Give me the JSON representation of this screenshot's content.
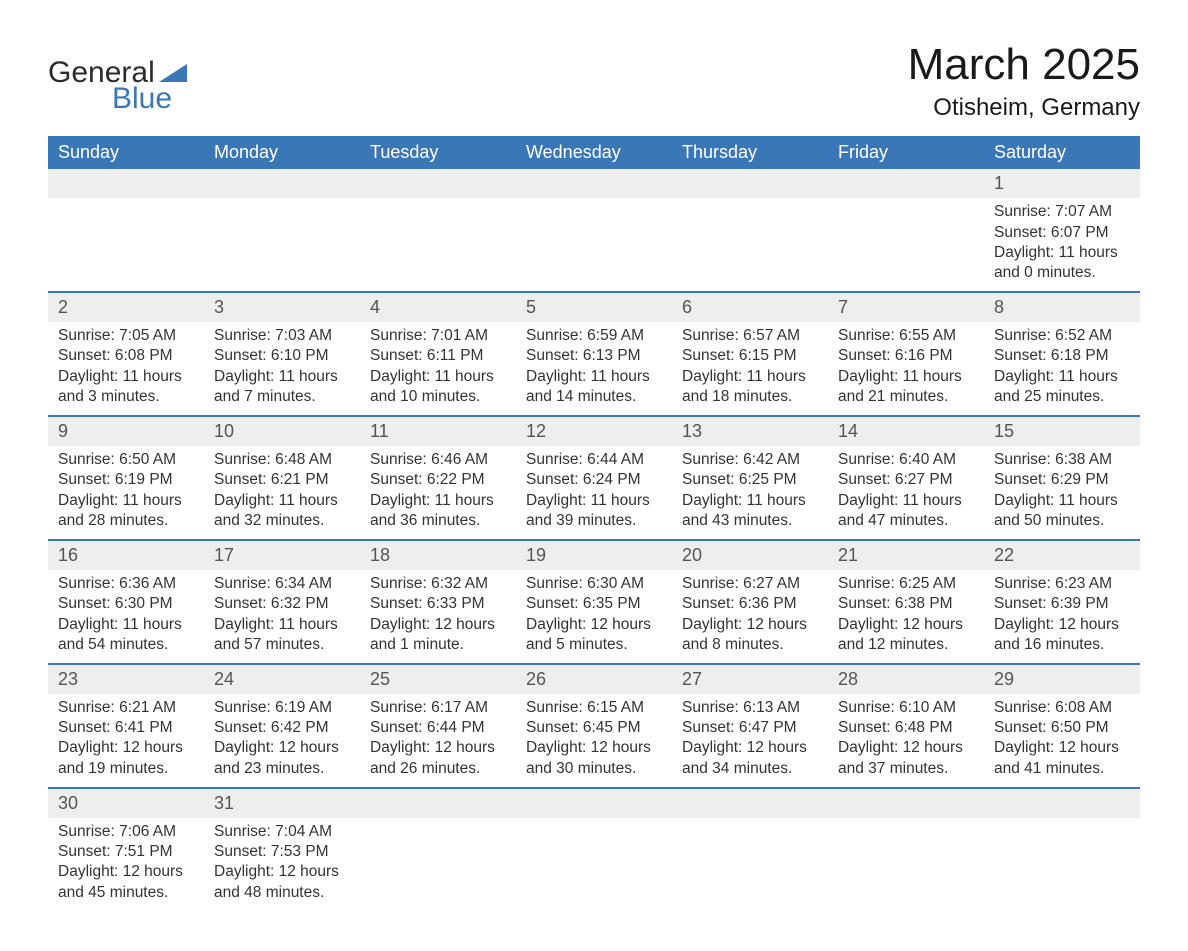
{
  "logo": {
    "word1": "General",
    "word2": "Blue",
    "accent": "#3a77b7",
    "text_color": "#2b2b2b"
  },
  "title": "March 2025",
  "location": "Otisheim, Germany",
  "colors": {
    "header_bg": "#3a77b7",
    "header_text": "#ffffff",
    "daynum_bg": "#eeeeee",
    "daynum_text": "#555555",
    "row_divider": "#3a77b7",
    "body_text": "#333333",
    "background": "#ffffff"
  },
  "typography": {
    "title_fontsize": 44,
    "location_fontsize": 24,
    "header_fontsize": 18,
    "daynum_fontsize": 18,
    "cell_fontsize": 15.5
  },
  "day_headers": [
    "Sunday",
    "Monday",
    "Tuesday",
    "Wednesday",
    "Thursday",
    "Friday",
    "Saturday"
  ],
  "weeks": [
    [
      null,
      null,
      null,
      null,
      null,
      null,
      {
        "n": "1",
        "sunrise": "Sunrise: 7:07 AM",
        "sunset": "Sunset: 6:07 PM",
        "daylight": "Daylight: 11 hours and 0 minutes."
      }
    ],
    [
      {
        "n": "2",
        "sunrise": "Sunrise: 7:05 AM",
        "sunset": "Sunset: 6:08 PM",
        "daylight": "Daylight: 11 hours and 3 minutes."
      },
      {
        "n": "3",
        "sunrise": "Sunrise: 7:03 AM",
        "sunset": "Sunset: 6:10 PM",
        "daylight": "Daylight: 11 hours and 7 minutes."
      },
      {
        "n": "4",
        "sunrise": "Sunrise: 7:01 AM",
        "sunset": "Sunset: 6:11 PM",
        "daylight": "Daylight: 11 hours and 10 minutes."
      },
      {
        "n": "5",
        "sunrise": "Sunrise: 6:59 AM",
        "sunset": "Sunset: 6:13 PM",
        "daylight": "Daylight: 11 hours and 14 minutes."
      },
      {
        "n": "6",
        "sunrise": "Sunrise: 6:57 AM",
        "sunset": "Sunset: 6:15 PM",
        "daylight": "Daylight: 11 hours and 18 minutes."
      },
      {
        "n": "7",
        "sunrise": "Sunrise: 6:55 AM",
        "sunset": "Sunset: 6:16 PM",
        "daylight": "Daylight: 11 hours and 21 minutes."
      },
      {
        "n": "8",
        "sunrise": "Sunrise: 6:52 AM",
        "sunset": "Sunset: 6:18 PM",
        "daylight": "Daylight: 11 hours and 25 minutes."
      }
    ],
    [
      {
        "n": "9",
        "sunrise": "Sunrise: 6:50 AM",
        "sunset": "Sunset: 6:19 PM",
        "daylight": "Daylight: 11 hours and 28 minutes."
      },
      {
        "n": "10",
        "sunrise": "Sunrise: 6:48 AM",
        "sunset": "Sunset: 6:21 PM",
        "daylight": "Daylight: 11 hours and 32 minutes."
      },
      {
        "n": "11",
        "sunrise": "Sunrise: 6:46 AM",
        "sunset": "Sunset: 6:22 PM",
        "daylight": "Daylight: 11 hours and 36 minutes."
      },
      {
        "n": "12",
        "sunrise": "Sunrise: 6:44 AM",
        "sunset": "Sunset: 6:24 PM",
        "daylight": "Daylight: 11 hours and 39 minutes."
      },
      {
        "n": "13",
        "sunrise": "Sunrise: 6:42 AM",
        "sunset": "Sunset: 6:25 PM",
        "daylight": "Daylight: 11 hours and 43 minutes."
      },
      {
        "n": "14",
        "sunrise": "Sunrise: 6:40 AM",
        "sunset": "Sunset: 6:27 PM",
        "daylight": "Daylight: 11 hours and 47 minutes."
      },
      {
        "n": "15",
        "sunrise": "Sunrise: 6:38 AM",
        "sunset": "Sunset: 6:29 PM",
        "daylight": "Daylight: 11 hours and 50 minutes."
      }
    ],
    [
      {
        "n": "16",
        "sunrise": "Sunrise: 6:36 AM",
        "sunset": "Sunset: 6:30 PM",
        "daylight": "Daylight: 11 hours and 54 minutes."
      },
      {
        "n": "17",
        "sunrise": "Sunrise: 6:34 AM",
        "sunset": "Sunset: 6:32 PM",
        "daylight": "Daylight: 11 hours and 57 minutes."
      },
      {
        "n": "18",
        "sunrise": "Sunrise: 6:32 AM",
        "sunset": "Sunset: 6:33 PM",
        "daylight": "Daylight: 12 hours and 1 minute."
      },
      {
        "n": "19",
        "sunrise": "Sunrise: 6:30 AM",
        "sunset": "Sunset: 6:35 PM",
        "daylight": "Daylight: 12 hours and 5 minutes."
      },
      {
        "n": "20",
        "sunrise": "Sunrise: 6:27 AM",
        "sunset": "Sunset: 6:36 PM",
        "daylight": "Daylight: 12 hours and 8 minutes."
      },
      {
        "n": "21",
        "sunrise": "Sunrise: 6:25 AM",
        "sunset": "Sunset: 6:38 PM",
        "daylight": "Daylight: 12 hours and 12 minutes."
      },
      {
        "n": "22",
        "sunrise": "Sunrise: 6:23 AM",
        "sunset": "Sunset: 6:39 PM",
        "daylight": "Daylight: 12 hours and 16 minutes."
      }
    ],
    [
      {
        "n": "23",
        "sunrise": "Sunrise: 6:21 AM",
        "sunset": "Sunset: 6:41 PM",
        "daylight": "Daylight: 12 hours and 19 minutes."
      },
      {
        "n": "24",
        "sunrise": "Sunrise: 6:19 AM",
        "sunset": "Sunset: 6:42 PM",
        "daylight": "Daylight: 12 hours and 23 minutes."
      },
      {
        "n": "25",
        "sunrise": "Sunrise: 6:17 AM",
        "sunset": "Sunset: 6:44 PM",
        "daylight": "Daylight: 12 hours and 26 minutes."
      },
      {
        "n": "26",
        "sunrise": "Sunrise: 6:15 AM",
        "sunset": "Sunset: 6:45 PM",
        "daylight": "Daylight: 12 hours and 30 minutes."
      },
      {
        "n": "27",
        "sunrise": "Sunrise: 6:13 AM",
        "sunset": "Sunset: 6:47 PM",
        "daylight": "Daylight: 12 hours and 34 minutes."
      },
      {
        "n": "28",
        "sunrise": "Sunrise: 6:10 AM",
        "sunset": "Sunset: 6:48 PM",
        "daylight": "Daylight: 12 hours and 37 minutes."
      },
      {
        "n": "29",
        "sunrise": "Sunrise: 6:08 AM",
        "sunset": "Sunset: 6:50 PM",
        "daylight": "Daylight: 12 hours and 41 minutes."
      }
    ],
    [
      {
        "n": "30",
        "sunrise": "Sunrise: 7:06 AM",
        "sunset": "Sunset: 7:51 PM",
        "daylight": "Daylight: 12 hours and 45 minutes."
      },
      {
        "n": "31",
        "sunrise": "Sunrise: 7:04 AM",
        "sunset": "Sunset: 7:53 PM",
        "daylight": "Daylight: 12 hours and 48 minutes."
      },
      null,
      null,
      null,
      null,
      null
    ]
  ]
}
